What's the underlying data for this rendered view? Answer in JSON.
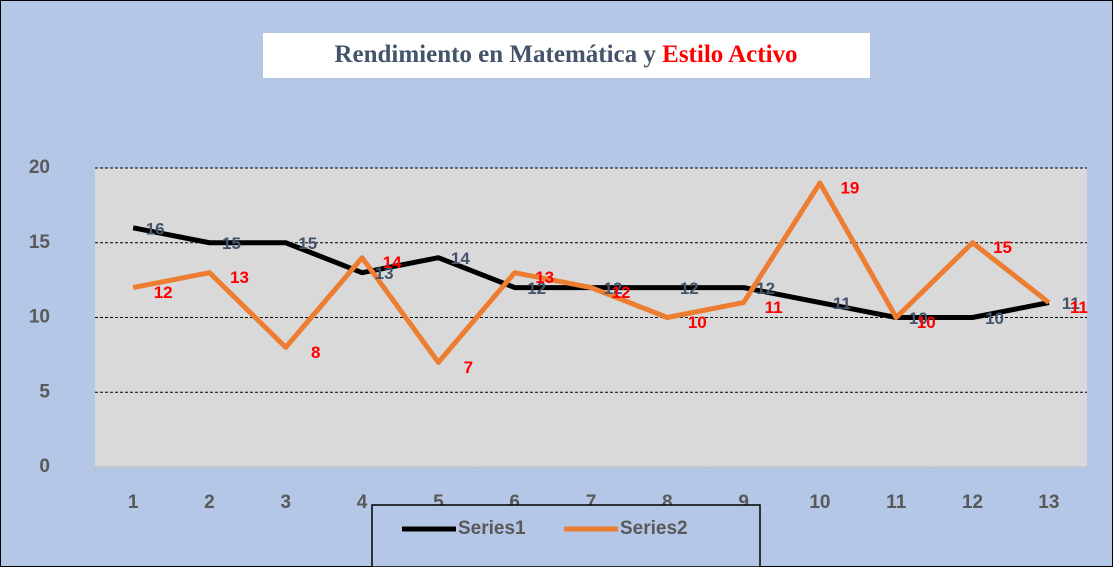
{
  "chart_data": {
    "type": "line",
    "title": [
      "Rendimiento en Matemática y",
      "Estilo Activo"
    ],
    "title_colors": [
      "#44546a",
      "#ff0000"
    ],
    "categories": [
      "1",
      "2",
      "3",
      "4",
      "5",
      "6",
      "7",
      "8",
      "9",
      "10",
      "11",
      "12",
      "13"
    ],
    "series": [
      {
        "name": "Series1",
        "color": "#000000",
        "label_color": "#44546a",
        "values": [
          16,
          15,
          15,
          13,
          14,
          12,
          12,
          12,
          12,
          11,
          10,
          10,
          11
        ]
      },
      {
        "name": "Series2",
        "color": "#ed7d31",
        "label_color": "#ff0000",
        "values": [
          12,
          13,
          8,
          14,
          7,
          13,
          12,
          10,
          11,
          19,
          10,
          15,
          11
        ]
      }
    ],
    "ylim": [
      0,
      20
    ],
    "yticks": [
      0,
      5,
      10,
      15,
      20
    ],
    "grid": true,
    "legend": "bottom"
  }
}
